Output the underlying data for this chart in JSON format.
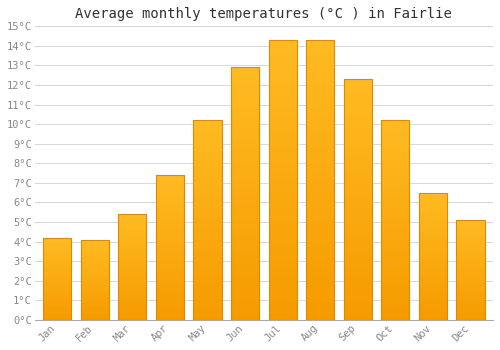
{
  "title": "Average monthly temperatures (°C ) in Fairlie",
  "months": [
    "Jan",
    "Feb",
    "Mar",
    "Apr",
    "May",
    "Jun",
    "Jul",
    "Aug",
    "Sep",
    "Oct",
    "Nov",
    "Dec"
  ],
  "values": [
    4.2,
    4.1,
    5.4,
    7.4,
    10.2,
    12.9,
    14.3,
    14.3,
    12.3,
    10.2,
    6.5,
    5.1
  ],
  "bar_color_top": "#FFBB22",
  "bar_color_bottom": "#F59B00",
  "bar_edge_color": "#E08800",
  "ylim": [
    0,
    15
  ],
  "yticks": [
    0,
    1,
    2,
    3,
    4,
    5,
    6,
    7,
    8,
    9,
    10,
    11,
    12,
    13,
    14,
    15
  ],
  "ytick_labels": [
    "0°C",
    "1°C",
    "2°C",
    "3°C",
    "4°C",
    "5°C",
    "6°C",
    "7°C",
    "8°C",
    "9°C",
    "10°C",
    "11°C",
    "12°C",
    "13°C",
    "14°C",
    "15°C"
  ],
  "background_color": "#ffffff",
  "plot_bg_color": "#ffffff",
  "grid_color": "#d8d8d8",
  "title_fontsize": 10,
  "tick_fontsize": 7.5,
  "tick_color": "#888888",
  "font_family": "monospace",
  "bar_width": 0.75
}
